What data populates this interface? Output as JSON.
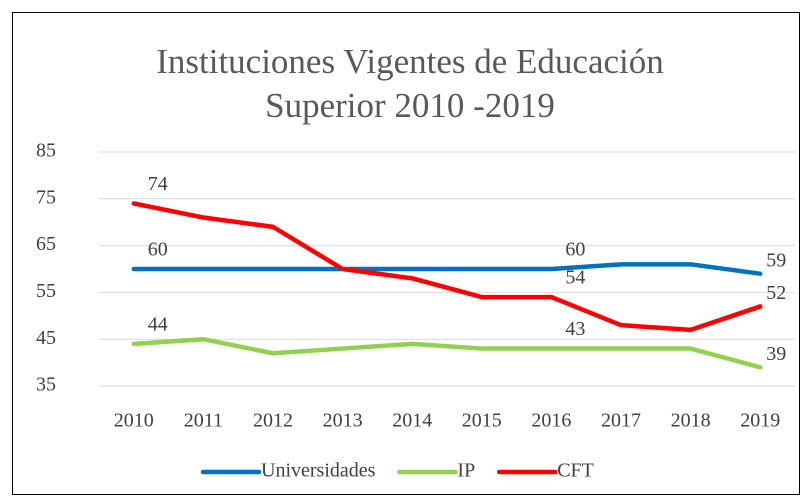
{
  "chart_data": {
    "type": "line",
    "title": "Instituciones Vigentes de Educación Superior 2010 -2019",
    "categories": [
      "2010",
      "2011",
      "2012",
      "2013",
      "2014",
      "2015",
      "2016",
      "2017",
      "2018",
      "2019"
    ],
    "series": [
      {
        "name": "Universidades",
        "color": "#0070c0",
        "values": [
          60,
          60,
          60,
          60,
          60,
          60,
          60,
          61,
          61,
          59
        ]
      },
      {
        "name": "IP",
        "color": "#92d050",
        "values": [
          44,
          45,
          42,
          43,
          44,
          43,
          43,
          43,
          43,
          39
        ]
      },
      {
        "name": "CFT",
        "color": "#ff0000",
        "values": [
          74,
          71,
          69,
          60,
          58,
          54,
          54,
          48,
          47,
          52
        ]
      }
    ],
    "data_labels": [
      0,
      6,
      9
    ],
    "ylim": [
      35,
      85
    ],
    "yticks": [
      35,
      45,
      55,
      65,
      75,
      85
    ],
    "grid": true,
    "legend": "bottom"
  }
}
